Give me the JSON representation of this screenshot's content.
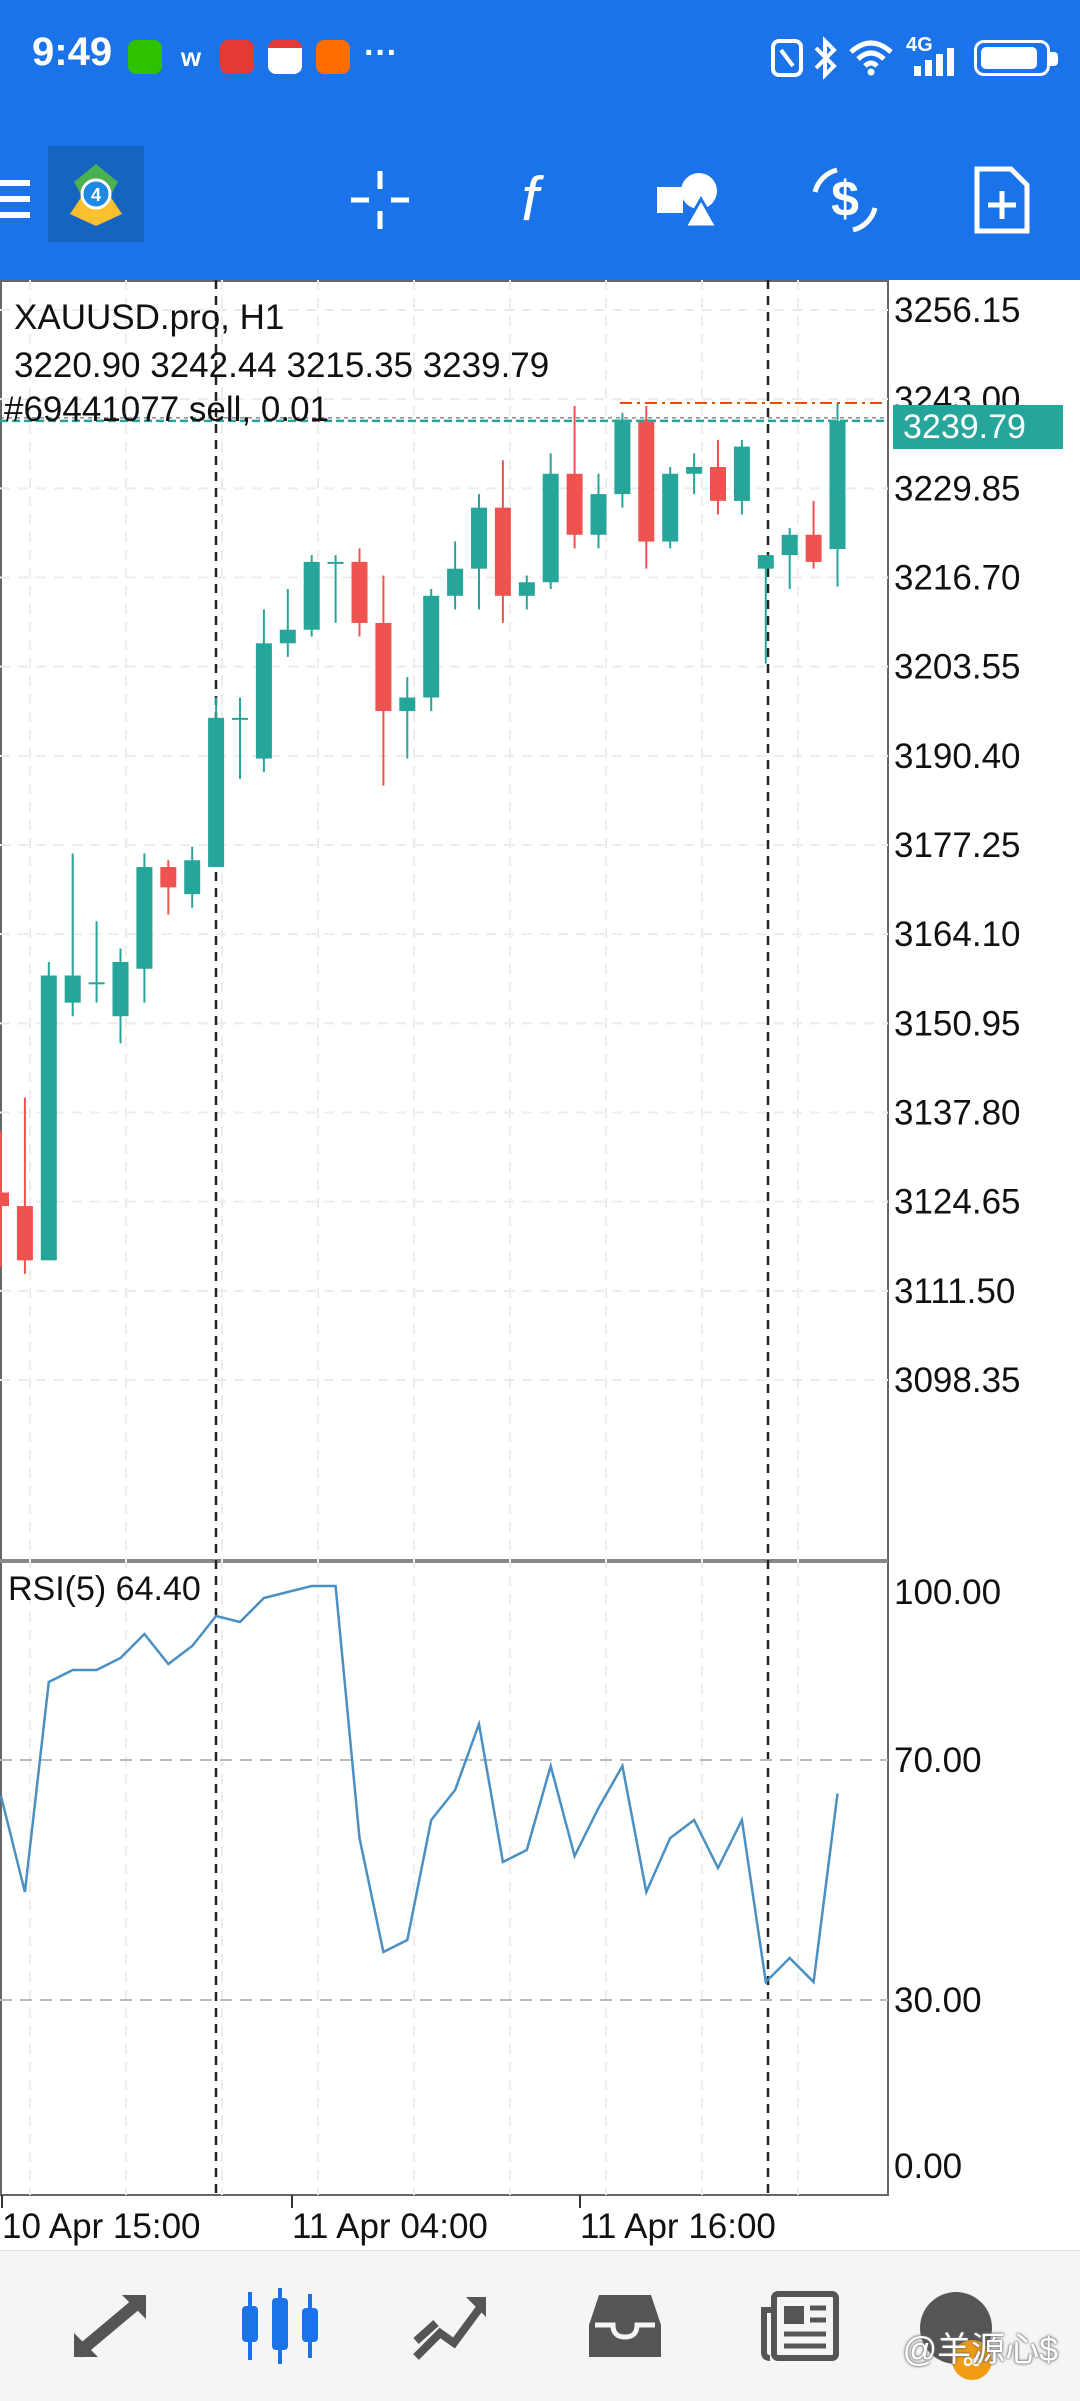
{
  "status_bar": {
    "time": "9:49",
    "more": "···",
    "network": "4G"
  },
  "toolbar": {
    "menu_icon": "hamburger-menu-icon",
    "app_logo": "metatrader-logo",
    "buttons": [
      "crosshair-icon",
      "indicator-f-icon",
      "objects-shapes-icon",
      "symbol-swap-icon",
      "new-order-icon"
    ]
  },
  "chart": {
    "symbol": "XAUUSD.pro, H1",
    "ohlc": "3220.90 3242.44 3215.35 3239.79",
    "order": "#69441077 sell, 0.01",
    "current_price": "3239.79",
    "price_ticks": [
      "3256.15",
      "3243.00",
      "3229.85",
      "3216.70",
      "3203.55",
      "3190.40",
      "3177.25",
      "3164.10",
      "3150.95",
      "3137.80",
      "3124.65",
      "3111.50",
      "3098.35"
    ],
    "time_labels": [
      "10 Apr 15:00",
      "11 Apr 04:00",
      "11 Apr 16:00"
    ],
    "colors": {
      "bull": "#26a69a",
      "bear": "#ef5350",
      "rsi": "#4a90c2",
      "price_tag": "#26a69a"
    }
  },
  "rsi": {
    "label": "RSI(5) 64.40",
    "ticks": [
      "100.00",
      "70.00",
      "30.00",
      "0.00"
    ]
  },
  "chart_data": {
    "type": "candlestick",
    "title": "XAUUSD.pro, H1",
    "ylim": [
      3088,
      3262
    ],
    "candles": [
      {
        "o": 3126,
        "h": 3135,
        "l": 3115,
        "c": 3124
      },
      {
        "o": 3124,
        "h": 3140,
        "l": 3114,
        "c": 3116
      },
      {
        "o": 3116,
        "h": 3160,
        "l": 3116,
        "c": 3158
      },
      {
        "o": 3154,
        "h": 3176,
        "l": 3152,
        "c": 3158
      },
      {
        "o": 3157,
        "h": 3166,
        "l": 3154,
        "c": 3157
      },
      {
        "o": 3152,
        "h": 3162,
        "l": 3148,
        "c": 3160
      },
      {
        "o": 3159,
        "h": 3176,
        "l": 3154,
        "c": 3174
      },
      {
        "o": 3174,
        "h": 3175,
        "l": 3167,
        "c": 3171
      },
      {
        "o": 3170,
        "h": 3177,
        "l": 3168,
        "c": 3175
      },
      {
        "o": 3174,
        "h": 3199,
        "l": 3174,
        "c": 3196
      },
      {
        "o": 3196,
        "h": 3199,
        "l": 3187,
        "c": 3196
      },
      {
        "o": 3190,
        "h": 3212,
        "l": 3188,
        "c": 3207
      },
      {
        "o": 3207,
        "h": 3215,
        "l": 3205,
        "c": 3209
      },
      {
        "o": 3209,
        "h": 3220,
        "l": 3208,
        "c": 3219
      },
      {
        "o": 3219,
        "h": 3220,
        "l": 3210,
        "c": 3219
      },
      {
        "o": 3219,
        "h": 3221,
        "l": 3208,
        "c": 3210
      },
      {
        "o": 3210,
        "h": 3217,
        "l": 3186,
        "c": 3197
      },
      {
        "o": 3197,
        "h": 3202,
        "l": 3190,
        "c": 3199
      },
      {
        "o": 3199,
        "h": 3215,
        "l": 3197,
        "c": 3214
      },
      {
        "o": 3214,
        "h": 3222,
        "l": 3212,
        "c": 3218
      },
      {
        "o": 3218,
        "h": 3229,
        "l": 3212,
        "c": 3227
      },
      {
        "o": 3227,
        "h": 3234,
        "l": 3210,
        "c": 3214
      },
      {
        "o": 3214,
        "h": 3217,
        "l": 3212,
        "c": 3216
      },
      {
        "o": 3216,
        "h": 3235,
        "l": 3215,
        "c": 3232
      },
      {
        "o": 3232,
        "h": 3242,
        "l": 3221,
        "c": 3223
      },
      {
        "o": 3223,
        "h": 3232,
        "l": 3221,
        "c": 3229
      },
      {
        "o": 3229,
        "h": 3241,
        "l": 3227,
        "c": 3240
      },
      {
        "o": 3240,
        "h": 3242,
        "l": 3218,
        "c": 3222
      },
      {
        "o": 3222,
        "h": 3233,
        "l": 3221,
        "c": 3232
      },
      {
        "o": 3232,
        "h": 3235,
        "l": 3229,
        "c": 3233
      },
      {
        "o": 3233,
        "h": 3237,
        "l": 3226,
        "c": 3228
      },
      {
        "o": 3228,
        "h": 3237,
        "l": 3226,
        "c": 3236
      },
      {
        "o": 3218,
        "h": 3220,
        "l": 3204,
        "c": 3220
      },
      {
        "o": 3220,
        "h": 3224,
        "l": 3215,
        "c": 3223
      },
      {
        "o": 3223,
        "h": 3228,
        "l": 3218,
        "c": 3219
      },
      {
        "o": 3220.9,
        "h": 3242.44,
        "l": 3215.35,
        "c": 3239.79
      }
    ],
    "rsi": [
      64,
      48,
      83,
      85,
      85,
      87,
      91,
      86,
      89,
      94,
      93,
      97,
      98,
      99,
      99,
      57,
      38,
      40,
      60,
      65,
      76,
      53,
      55,
      69,
      54,
      62,
      69,
      48,
      57,
      60,
      52,
      60,
      33,
      37,
      33,
      64.4
    ],
    "rsi_ylim": [
      0,
      100
    ],
    "time_labels": [
      "10 Apr 15:00",
      "11 Apr 04:00",
      "11 Apr 16:00"
    ]
  }
}
